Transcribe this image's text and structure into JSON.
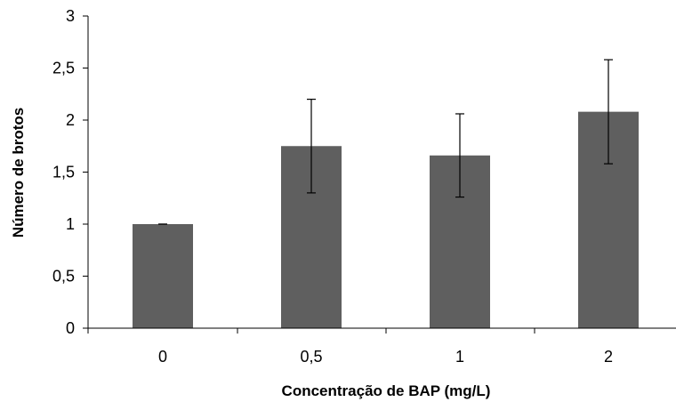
{
  "chart_data": {
    "type": "bar",
    "title": "",
    "xlabel": "Concentração de BAP (mg/L)",
    "ylabel": "Número de brotos",
    "categories": [
      "0",
      "0,5",
      "1",
      "2"
    ],
    "values": [
      1.0,
      1.75,
      1.66,
      2.08
    ],
    "error_bars": [
      {
        "low": 1.0,
        "high": 1.0
      },
      {
        "low": 1.3,
        "high": 2.2
      },
      {
        "low": 1.26,
        "high": 2.06
      },
      {
        "low": 1.58,
        "high": 2.58
      }
    ],
    "ylim": [
      0,
      3
    ],
    "yticks": [
      0,
      0.5,
      1,
      1.5,
      2,
      2.5,
      3
    ],
    "ytick_labels": [
      "0",
      "0,5",
      "1",
      "1,5",
      "2",
      "2,5",
      "3"
    ],
    "grid": false,
    "legend": "none",
    "colors": {
      "bar": "#5f5f5f",
      "axis": "#000000",
      "error_bar": "#000000"
    }
  }
}
